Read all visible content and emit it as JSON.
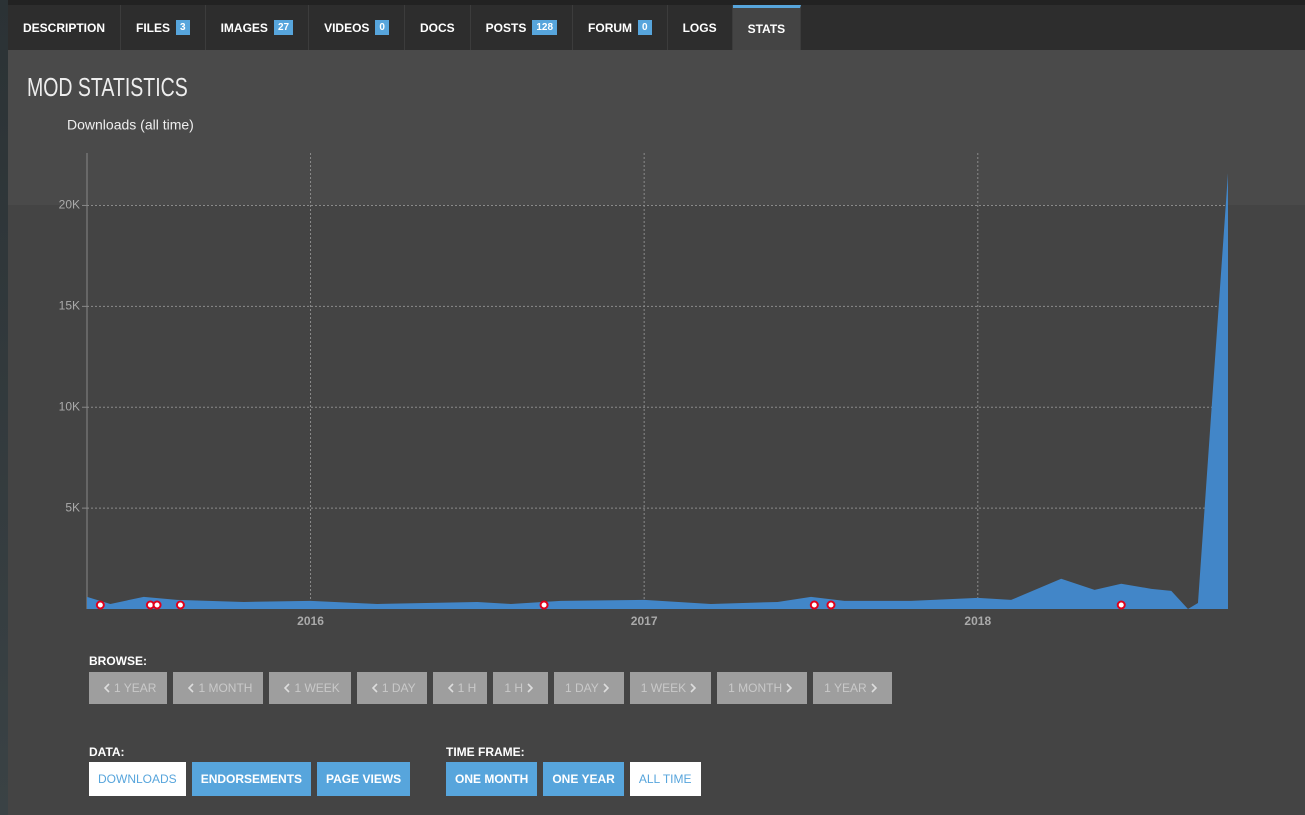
{
  "tabs": [
    {
      "label": "DESCRIPTION"
    },
    {
      "label": "FILES",
      "count": 3
    },
    {
      "label": "IMAGES",
      "count": 27
    },
    {
      "label": "VIDEOS",
      "count": 0
    },
    {
      "label": "DOCS"
    },
    {
      "label": "POSTS",
      "count": 128
    },
    {
      "label": "FORUM",
      "count": 0
    },
    {
      "label": "LOGS"
    },
    {
      "label": "STATS",
      "active": true
    }
  ],
  "heading": "MOD STATISTICS",
  "chart_data": {
    "type": "area",
    "title": "Downloads (all time)",
    "x": [
      2015.33,
      2015.4,
      2015.5,
      2015.6,
      2015.8,
      2016.0,
      2016.2,
      2016.5,
      2016.6,
      2016.75,
      2017.0,
      2017.2,
      2017.4,
      2017.5,
      2017.6,
      2017.8,
      2018.0,
      2018.1,
      2018.25,
      2018.35,
      2018.43,
      2018.52,
      2018.58,
      2018.63,
      2018.66,
      2018.75
    ],
    "values": [
      600,
      250,
      600,
      450,
      350,
      400,
      250,
      350,
      250,
      400,
      450,
      250,
      350,
      600,
      400,
      400,
      550,
      450,
      1500,
      950,
      1250,
      1000,
      900,
      0,
      300,
      21600
    ],
    "markers": [
      2015.37,
      2015.52,
      2015.54,
      2015.61,
      2016.7,
      2017.51,
      2017.56,
      2018.43
    ],
    "xlim": [
      2015.33,
      2018.75
    ],
    "xticks": [
      2016,
      2017,
      2018
    ],
    "ylim": [
      0,
      22600
    ],
    "yticks": [
      {
        "value": 5000,
        "label": "5K"
      },
      {
        "value": 10000,
        "label": "10K"
      },
      {
        "value": 15000,
        "label": "15K"
      },
      {
        "value": 20000,
        "label": "20K"
      }
    ],
    "color": "#4286c8",
    "marker_color": "#e0001b",
    "grid": true
  },
  "browse": {
    "label": "BROWSE:",
    "buttons": [
      {
        "label": "1 YEAR",
        "dir": "prev"
      },
      {
        "label": "1 MONTH",
        "dir": "prev"
      },
      {
        "label": "1 WEEK",
        "dir": "prev"
      },
      {
        "label": "1 DAY",
        "dir": "prev"
      },
      {
        "label": "1 H",
        "dir": "prev"
      },
      {
        "label": "1 H",
        "dir": "next"
      },
      {
        "label": "1 DAY",
        "dir": "next"
      },
      {
        "label": "1 WEEK",
        "dir": "next"
      },
      {
        "label": "1 MONTH",
        "dir": "next"
      },
      {
        "label": "1 YEAR",
        "dir": "next"
      }
    ]
  },
  "data_select": {
    "label": "DATA:",
    "options": [
      "DOWNLOADS",
      "ENDORSEMENTS",
      "PAGE VIEWS"
    ],
    "selected": 0
  },
  "time_frame": {
    "label": "TIME FRAME:",
    "options": [
      "ONE MONTH",
      "ONE YEAR",
      "ALL TIME"
    ],
    "selected": 2
  }
}
